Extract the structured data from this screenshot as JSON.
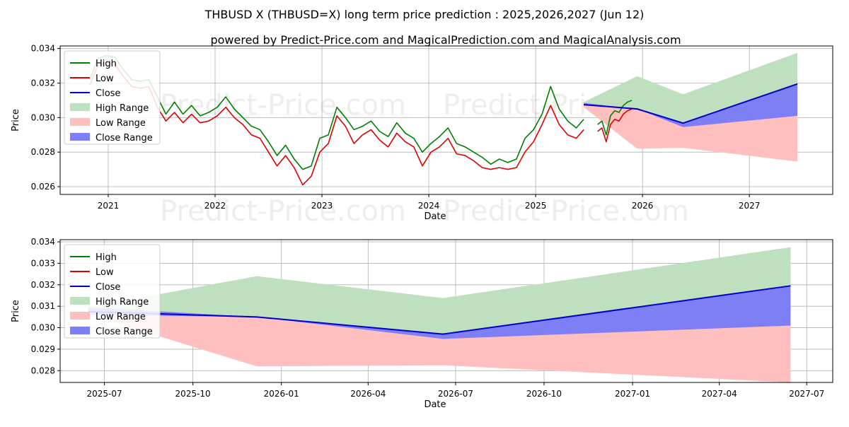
{
  "title": "THBUSD X (THBUSD=X) long term price prediction : 2025,2026,2027 (Jun 12)",
  "subtitle": "powered by Predict-Price.com and MagicalPrediction.com and MagicalAnalysis.com",
  "watermark": "Predict-Price.com",
  "colors": {
    "high": "#008000",
    "low": "#e00000",
    "close": "#0000cc",
    "high_range": "#bfe0bf",
    "low_range": "#ffbfbf",
    "close_range": "#7f7ff5",
    "grid": "#b0b0b0"
  },
  "chart_data": [
    {
      "type": "line",
      "id": "top",
      "xlabel": "Date",
      "ylabel": "Price",
      "xlim": [
        2020.55,
        2027.78
      ],
      "ylim": [
        0.02555,
        0.03415
      ],
      "yticks": [
        0.026,
        0.028,
        0.03,
        0.032,
        0.034
      ],
      "ytick_labels": [
        "0.026",
        "0.028",
        "0.030",
        "0.032",
        "0.034"
      ],
      "xticks": [
        2021,
        2022,
        2023,
        2024,
        2025,
        2026,
        2027
      ],
      "xtick_labels": [
        "2021",
        "2022",
        "2023",
        "2024",
        "2025",
        "2026",
        "2027"
      ],
      "legend": [
        "High",
        "Low",
        "Close",
        "High Range",
        "Low Range",
        "Close Range"
      ],
      "legend_loc": "upper-left",
      "history_x": [
        2020.83,
        2020.9,
        2020.98,
        2021.06,
        2021.14,
        2021.22,
        2021.3,
        2021.38,
        2021.46,
        2021.54,
        2021.62,
        2021.7,
        2021.78,
        2021.86,
        2021.94,
        2022.02,
        2022.1,
        2022.18,
        2022.26,
        2022.34,
        2022.42,
        2022.5,
        2022.58,
        2022.66,
        2022.74,
        2022.82,
        2022.9,
        2022.98,
        2023.06,
        2023.14,
        2023.22,
        2023.3,
        2023.38,
        2023.46,
        2023.54,
        2023.62,
        2023.7,
        2023.78,
        2023.86,
        2023.94,
        2024.02,
        2024.1,
        2024.18,
        2024.26,
        2024.34,
        2024.42,
        2024.5,
        2024.58,
        2024.66,
        2024.74,
        2024.82,
        2024.9,
        2024.98,
        2025.06,
        2025.14,
        2025.22,
        2025.3,
        2025.38,
        2025.45
      ],
      "history_high": [
        0.0322,
        0.0334,
        0.0336,
        0.0335,
        0.0328,
        0.0322,
        0.0321,
        0.0322,
        0.0312,
        0.0302,
        0.0309,
        0.0302,
        0.0307,
        0.0301,
        0.0303,
        0.0306,
        0.0312,
        0.0305,
        0.03,
        0.0295,
        0.0293,
        0.0286,
        0.0278,
        0.0284,
        0.0276,
        0.027,
        0.0272,
        0.0288,
        0.029,
        0.0306,
        0.03,
        0.0293,
        0.0295,
        0.0298,
        0.0292,
        0.0289,
        0.0297,
        0.0291,
        0.0288,
        0.028,
        0.0285,
        0.0289,
        0.0294,
        0.0285,
        0.0283,
        0.028,
        0.0277,
        0.0273,
        0.0276,
        0.0274,
        0.0276,
        0.0288,
        0.0293,
        0.0302,
        0.0318,
        0.0305,
        0.0298,
        0.0294,
        0.0299
      ],
      "history_low": [
        0.0319,
        0.033,
        0.0332,
        0.0331,
        0.0324,
        0.0318,
        0.0317,
        0.0318,
        0.0306,
        0.0298,
        0.0303,
        0.0297,
        0.0302,
        0.0297,
        0.0298,
        0.0301,
        0.0306,
        0.03,
        0.0296,
        0.029,
        0.0288,
        0.028,
        0.0272,
        0.0278,
        0.0271,
        0.0261,
        0.0266,
        0.028,
        0.0285,
        0.0301,
        0.0295,
        0.0285,
        0.029,
        0.0293,
        0.0287,
        0.0283,
        0.0291,
        0.0286,
        0.0283,
        0.0272,
        0.028,
        0.0283,
        0.0288,
        0.0279,
        0.0278,
        0.0275,
        0.0271,
        0.027,
        0.0271,
        0.027,
        0.0271,
        0.028,
        0.0286,
        0.0296,
        0.0307,
        0.0296,
        0.029,
        0.0288,
        0.0293
      ],
      "history2_x": [
        2025.58,
        2025.62,
        2025.66,
        2025.7,
        2025.74,
        2025.78,
        2025.82,
        2025.86,
        2025.9
      ],
      "history2_high": [
        0.0296,
        0.0298,
        0.029,
        0.0301,
        0.0304,
        0.0303,
        0.0307,
        0.0309,
        0.031
      ],
      "history2_low": [
        0.0292,
        0.0294,
        0.0286,
        0.0296,
        0.0299,
        0.0298,
        0.0302,
        0.0304,
        0.0305
      ],
      "forecast_x": [
        2025.45,
        2025.95,
        2026.38,
        2027.45
      ],
      "forecast_close": [
        0.03075,
        0.0305,
        0.02968,
        0.03195
      ],
      "high_range_upper": [
        0.0309,
        0.0324,
        0.03135,
        0.03375
      ],
      "high_range_lower": [
        0.03075,
        0.0305,
        0.02968,
        0.03195
      ],
      "low_range_upper": [
        0.03075,
        0.0305,
        0.02968,
        0.0301
      ],
      "low_range_lower": [
        0.0306,
        0.0282,
        0.02825,
        0.02745
      ],
      "close_range_upper": [
        0.03085,
        0.0305,
        0.02968,
        0.03195
      ],
      "close_range_lower": [
        0.0307,
        0.0305,
        0.02945,
        0.0301
      ]
    },
    {
      "type": "line",
      "id": "bottom",
      "xlabel": "Date",
      "ylabel": "Price",
      "xlim": [
        2025.37,
        2027.57
      ],
      "ylim": [
        0.02745,
        0.0341
      ],
      "yticks": [
        0.028,
        0.029,
        0.03,
        0.031,
        0.032,
        0.033,
        0.034
      ],
      "ytick_labels": [
        "0.028",
        "0.029",
        "0.030",
        "0.031",
        "0.032",
        "0.033",
        "0.034"
      ],
      "xticks": [
        2025.496,
        2025.748,
        2026.0,
        2026.247,
        2026.496,
        2026.748,
        2027.0,
        2027.247,
        2027.496
      ],
      "xtick_labels": [
        "2025-07",
        "2025-10",
        "2026-01",
        "2026-04",
        "2026-07",
        "2026-10",
        "2027-01",
        "2027-04",
        "2027-07"
      ],
      "legend": [
        "High",
        "Low",
        "Close",
        "High Range",
        "Low Range",
        "Close Range"
      ],
      "legend_loc": "upper-left",
      "forecast_x": [
        2025.45,
        2025.93,
        2026.46,
        2027.45
      ],
      "forecast_close": [
        0.03075,
        0.0305,
        0.0297,
        0.03195
      ],
      "high_range_upper": [
        0.03095,
        0.0324,
        0.03138,
        0.03375
      ],
      "high_range_lower": [
        0.03075,
        0.0305,
        0.0297,
        0.03195
      ],
      "low_range_upper": [
        0.03075,
        0.0305,
        0.0297,
        0.0301
      ],
      "low_range_lower": [
        0.03062,
        0.0282,
        0.02825,
        0.02745
      ],
      "close_range_upper": [
        0.03095,
        0.0305,
        0.0297,
        0.03195
      ],
      "close_range_lower": [
        0.0306,
        0.0305,
        0.02948,
        0.0301
      ]
    }
  ]
}
